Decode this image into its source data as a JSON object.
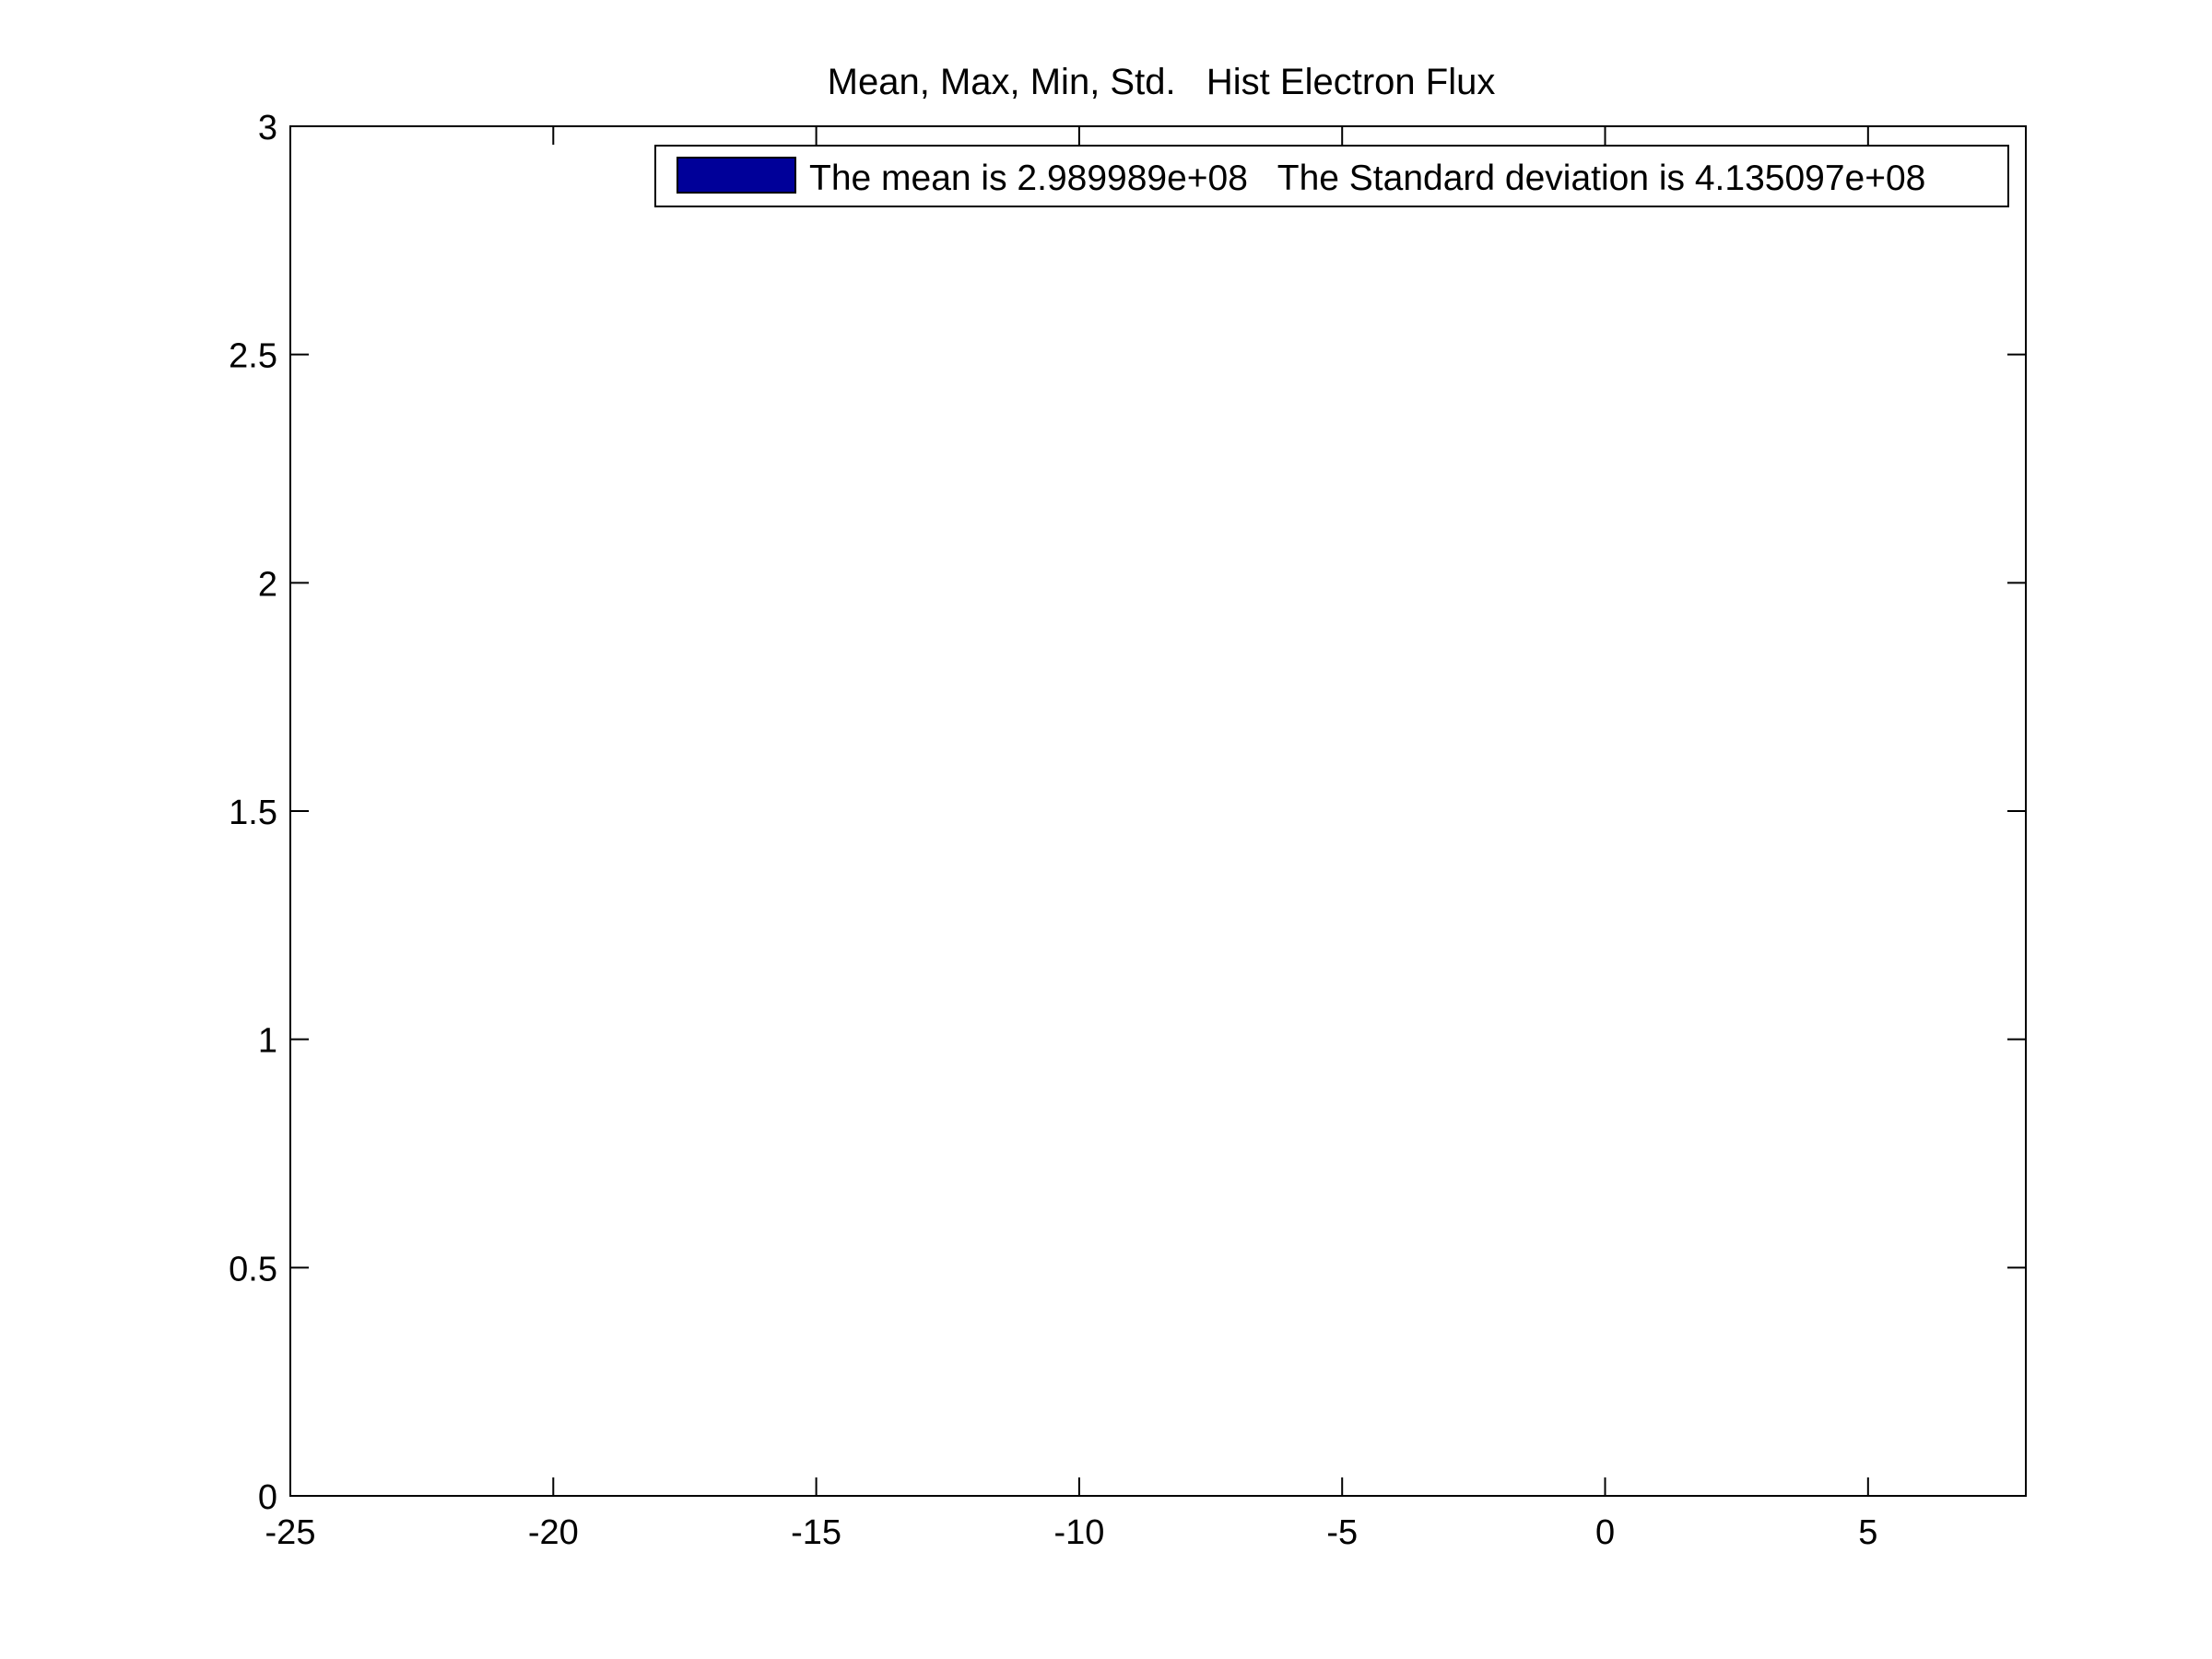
{
  "chart_data": {
    "type": "bar",
    "title": "Mean, Max, Min, Std.   Hist Electron Flux",
    "xlabel": "",
    "ylabel": "",
    "xlim": [
      -25,
      8
    ],
    "ylim": [
      0,
      3
    ],
    "x_ticks": [
      -25,
      -20,
      -15,
      -10,
      -5,
      0,
      5
    ],
    "x_tick_labels": [
      "-25",
      "-20",
      "-15",
      "-10",
      "-5",
      "0",
      "5"
    ],
    "y_ticks": [
      0,
      0.5,
      1,
      1.5,
      2,
      2.5,
      3
    ],
    "y_tick_labels": [
      "0",
      "0.5",
      "1",
      "1.5",
      "2",
      "2.5",
      "3"
    ],
    "grid": false,
    "legend_position": "top-right",
    "series": [
      {
        "name": "The mean is 2.989989e+08   The Standard deviation is 4.135097e+08",
        "color": "#000099",
        "x": [],
        "values": []
      }
    ]
  }
}
